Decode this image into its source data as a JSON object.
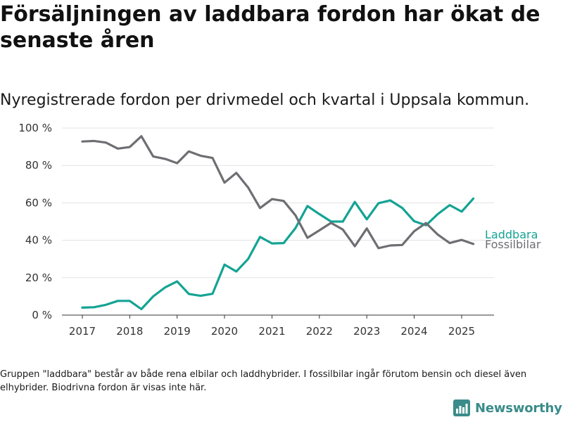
{
  "header": {
    "title": "Försäljningen av laddbara fordon har ökat de senaste åren",
    "subtitle": "Nyregistrerade fordon per drivmedel och kvartal i Uppsala kommun."
  },
  "footer": {
    "note": "Gruppen \"laddbara\" består av både rena elbilar och laddhybrider. I fossilbilar ingår förutom bensin och diesel även elhybrider. Biodrivna fordon är visas inte här.",
    "brand": "Newsworthy"
  },
  "colors": {
    "laddbara": "#14a394",
    "fossilbilar": "#6e6e73",
    "brand": "#3a8c8a"
  },
  "icons": {
    "brand": "bar-chart-icon"
  },
  "chart_data": {
    "type": "line",
    "x_type": "quarter",
    "x": [
      "2017-01-01",
      "2017-04-01",
      "2017-07-01",
      "2017-10-01",
      "2018-01-01",
      "2018-04-01",
      "2018-07-01",
      "2018-10-01",
      "2019-01-01",
      "2019-04-01",
      "2019-07-01",
      "2019-10-01",
      "2020-01-01",
      "2020-04-01",
      "2020-07-01",
      "2020-10-01",
      "2021-01-01",
      "2021-04-01",
      "2021-07-01",
      "2021-10-01",
      "2022-01-01",
      "2022-04-01",
      "2022-07-01",
      "2022-10-01",
      "2023-01-01",
      "2023-04-01",
      "2023-07-01",
      "2023-10-01",
      "2024-01-01",
      "2024-04-01",
      "2024-07-01",
      "2024-10-01",
      "2025-01-01",
      "2025-04-01"
    ],
    "series": [
      {
        "name": "Laddbara",
        "color": "#14a394",
        "values": [
          4,
          4.2,
          5.5,
          7.6,
          7.6,
          3.2,
          10,
          14.8,
          18,
          11.3,
          10.3,
          11.4,
          27,
          23.3,
          30,
          41.8,
          38.3,
          38.5,
          46.5,
          58.3,
          54,
          50,
          50,
          60.5,
          51.2,
          59.8,
          61.3,
          57.3,
          50.2,
          48,
          54,
          58.8,
          55.3,
          62.3
        ]
      },
      {
        "name": "Fossilbilar",
        "color": "#6e6e73",
        "values": [
          92.8,
          93.1,
          92.2,
          89,
          89.8,
          95.6,
          84.8,
          83.5,
          81.2,
          87.5,
          85.2,
          84,
          70.8,
          76,
          68.2,
          57.2,
          62,
          61,
          53.3,
          41.3,
          45.3,
          49.3,
          45.7,
          36.8,
          46.3,
          35.8,
          37.2,
          37.5,
          44.8,
          49.2,
          43,
          38.5,
          40.2,
          38
        ]
      }
    ],
    "ylim": [
      0,
      100
    ],
    "yticks": [
      0,
      20,
      40,
      60,
      80,
      100
    ],
    "ytick_labels": [
      "0 %",
      "20 %",
      "40 %",
      "60 %",
      "80 %",
      "100 %"
    ],
    "xticks": [
      "2017",
      "2018",
      "2019",
      "2020",
      "2021",
      "2022",
      "2023",
      "2024",
      "2025"
    ],
    "grid": true,
    "legend": "direct labels at line ends (right)",
    "xlabel": "",
    "ylabel": ""
  }
}
